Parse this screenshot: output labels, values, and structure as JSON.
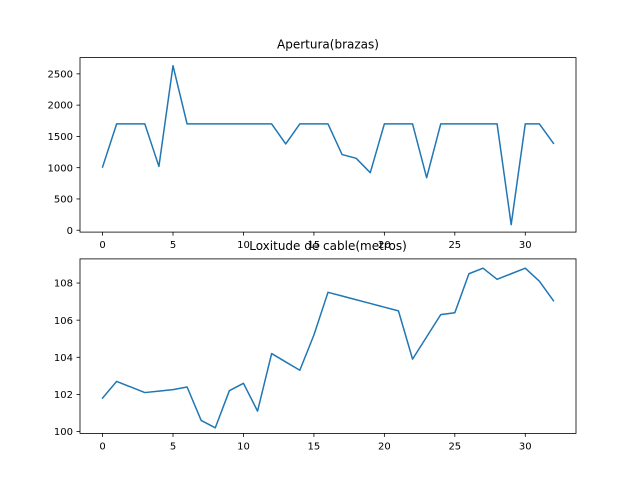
{
  "chart_data": [
    {
      "type": "line",
      "title": "Apertura(brazas)",
      "xlabel": "",
      "ylabel": "",
      "xlim": [
        -1.6,
        33.6
      ],
      "ylim": [
        -30,
        2760
      ],
      "x_ticks": [
        0,
        5,
        10,
        15,
        20,
        25,
        30
      ],
      "y_ticks": [
        0,
        500,
        1000,
        1500,
        2000,
        2500
      ],
      "grid": false,
      "color": "#1f77b4",
      "x": [
        0,
        1,
        2,
        3,
        4,
        5,
        6,
        7,
        8,
        9,
        10,
        11,
        12,
        13,
        14,
        15,
        16,
        17,
        18,
        19,
        20,
        21,
        22,
        23,
        24,
        25,
        26,
        27,
        28,
        29,
        30,
        31,
        32
      ],
      "values": [
        1010,
        1700,
        1700,
        1700,
        1020,
        2630,
        1700,
        1700,
        1700,
        1700,
        1700,
        1700,
        1700,
        1380,
        1700,
        1700,
        1700,
        1210,
        1150,
        920,
        1700,
        1700,
        1700,
        840,
        1700,
        1700,
        1700,
        1700,
        1700,
        90,
        1700,
        1700,
        1390
      ]
    },
    {
      "type": "line",
      "title": "Loxitude de cable(metros)",
      "xlabel": "",
      "ylabel": "",
      "xlim": [
        -1.6,
        33.6
      ],
      "ylim": [
        99.9,
        109.3
      ],
      "x_ticks": [
        0,
        5,
        10,
        15,
        20,
        25,
        30
      ],
      "y_ticks": [
        100,
        102,
        104,
        106,
        108
      ],
      "grid": false,
      "color": "#1f77b4",
      "x": [
        0,
        1,
        2,
        3,
        4,
        5,
        6,
        7,
        8,
        9,
        10,
        11,
        12,
        13,
        14,
        15,
        16,
        17,
        18,
        19,
        20,
        21,
        22,
        23,
        24,
        25,
        26,
        27,
        28,
        29,
        30,
        31,
        32
      ],
      "values": [
        101.8,
        102.7,
        102.4,
        102.1,
        102.18,
        102.26,
        102.4,
        100.6,
        100.2,
        102.2,
        102.6,
        101.1,
        104.2,
        103.75,
        103.3,
        105.2,
        107.5,
        107.3,
        107.1,
        106.9,
        106.7,
        106.5,
        103.9,
        105.1,
        106.3,
        106.4,
        108.5,
        108.8,
        108.2,
        108.5,
        108.8,
        108.1,
        107.05
      ]
    }
  ]
}
